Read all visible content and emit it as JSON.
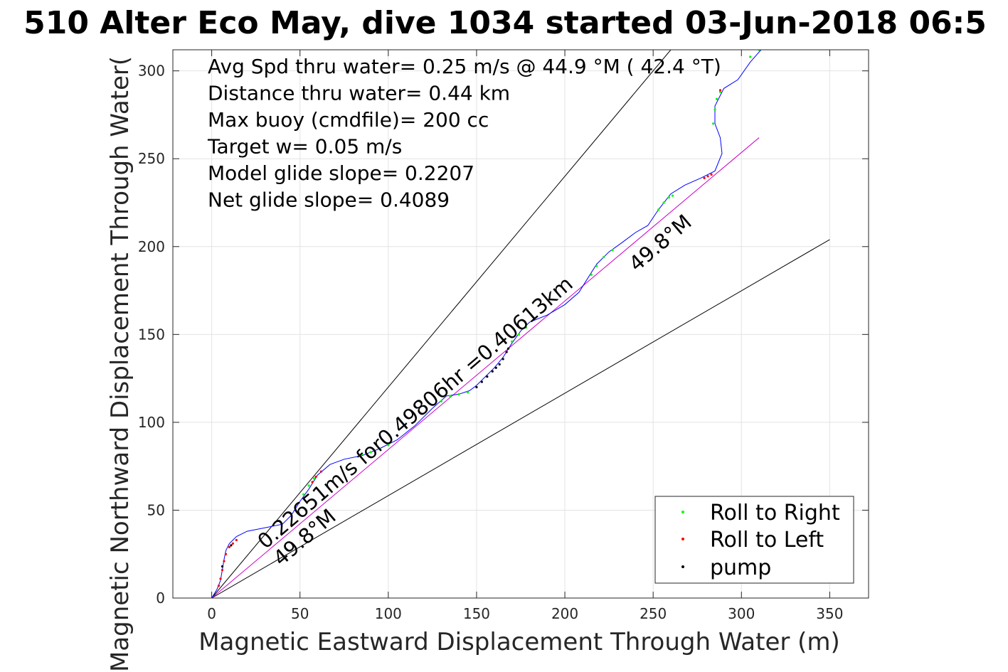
{
  "chart_data": {
    "type": "line",
    "title": "510 Alter Eco May, dive 1034 started 03-Jun-2018 06:5",
    "xlabel": "Magnetic Eastward Displacement Through Water (m)",
    "ylabel": "Magnetic Northward Displacement Through Water(",
    "xlim": [
      -22,
      372
    ],
    "ylim": [
      0,
      312
    ],
    "xticks": [
      0,
      50,
      100,
      150,
      200,
      250,
      300,
      350
    ],
    "yticks": [
      0,
      50,
      100,
      150,
      200,
      250,
      300
    ],
    "grid": true,
    "legend_position": "bottom-right",
    "info_lines": [
      "Avg Spd thru water=  0.25 m/s @  44.9 °M ( 42.4 °T)",
      "Distance thru water=  0.44 km",
      "Max buoy (cmdfile)= 200 cc",
      "Target w= 0.05 m/s",
      "Model glide slope= 0.2207",
      "Net glide slope= 0.4089"
    ],
    "annotations": {
      "path_label": "0.22651m/s for0.49806hr =0.40613km",
      "heading_upper": "49.8°M",
      "heading_lower": "49.8°M"
    },
    "colors": {
      "track": "#0000ff",
      "net_line": "#cc00cc",
      "roll_right": "#00ff00",
      "roll_left": "#ff0000",
      "pump": "#000000",
      "bounds": "#000000"
    },
    "reference_lines": [
      {
        "role": "upper-bound",
        "points": [
          [
            0,
            0
          ],
          [
            260,
            312
          ]
        ]
      },
      {
        "role": "lower-bound",
        "points": [
          [
            0,
            0
          ],
          [
            350,
            204
          ]
        ]
      },
      {
        "role": "net-course",
        "points": [
          [
            0,
            0
          ],
          [
            310,
            262
          ]
        ]
      }
    ],
    "series": [
      {
        "name": "track",
        "points": [
          [
            0,
            0
          ],
          [
            3,
            5
          ],
          [
            5,
            10
          ],
          [
            6,
            16
          ],
          [
            7,
            22
          ],
          [
            8,
            27
          ],
          [
            10,
            31
          ],
          [
            14,
            35
          ],
          [
            20,
            38
          ],
          [
            30,
            40
          ],
          [
            40,
            42
          ],
          [
            45,
            47
          ],
          [
            50,
            55
          ],
          [
            55,
            62
          ],
          [
            60,
            70
          ],
          [
            67,
            76
          ],
          [
            75,
            79
          ],
          [
            85,
            81
          ],
          [
            95,
            85
          ],
          [
            105,
            90
          ],
          [
            115,
            98
          ],
          [
            125,
            108
          ],
          [
            133,
            115
          ],
          [
            140,
            116
          ],
          [
            146,
            118
          ],
          [
            150,
            121
          ],
          [
            155,
            126
          ],
          [
            160,
            131
          ],
          [
            165,
            137
          ],
          [
            170,
            145
          ],
          [
            175,
            152
          ],
          [
            180,
            157
          ],
          [
            190,
            161
          ],
          [
            200,
            167
          ],
          [
            208,
            174
          ],
          [
            213,
            182
          ],
          [
            218,
            190
          ],
          [
            225,
            197
          ],
          [
            232,
            202
          ],
          [
            240,
            208
          ],
          [
            247,
            212
          ],
          [
            253,
            221
          ],
          [
            260,
            230
          ],
          [
            268,
            235
          ],
          [
            277,
            239
          ],
          [
            285,
            243
          ],
          [
            289,
            253
          ],
          [
            288,
            262
          ],
          [
            285,
            270
          ],
          [
            285,
            280
          ],
          [
            290,
            290
          ],
          [
            298,
            295
          ],
          [
            305,
            305
          ],
          [
            312,
            313
          ]
        ]
      },
      {
        "name": "Roll to Right",
        "points": [
          [
            52,
            59
          ],
          [
            55,
            64
          ],
          [
            58,
            68
          ],
          [
            85,
            82
          ],
          [
            90,
            83
          ],
          [
            95,
            85
          ],
          [
            100,
            87
          ],
          [
            130,
            112
          ],
          [
            135,
            115
          ],
          [
            140,
            116
          ],
          [
            145,
            117
          ],
          [
            170,
            146
          ],
          [
            174,
            150
          ],
          [
            178,
            154
          ],
          [
            215,
            184
          ],
          [
            218,
            189
          ],
          [
            222,
            194
          ],
          [
            253,
            221
          ],
          [
            256,
            225
          ],
          [
            259,
            228
          ],
          [
            284,
            270
          ],
          [
            285,
            278
          ],
          [
            286,
            284
          ],
          [
            288,
            288
          ],
          [
            305,
            308
          ],
          [
            310,
            312
          ],
          [
            261,
            229
          ],
          [
            227,
            198
          ]
        ]
      },
      {
        "name": "Roll to Left",
        "points": [
          [
            4,
            7
          ],
          [
            5,
            11
          ],
          [
            6,
            16
          ],
          [
            7,
            21
          ],
          [
            8,
            25
          ],
          [
            10,
            29
          ],
          [
            12,
            31
          ],
          [
            14,
            33
          ],
          [
            57,
            66
          ],
          [
            59,
            69
          ],
          [
            62,
            72
          ],
          [
            279,
            239
          ],
          [
            281,
            240
          ],
          [
            283,
            241
          ],
          [
            288,
            289
          ]
        ]
      },
      {
        "name": "pump",
        "points": [
          [
            150,
            120
          ],
          [
            153,
            123
          ],
          [
            156,
            126
          ],
          [
            159,
            129
          ],
          [
            161,
            131
          ],
          [
            163,
            133
          ],
          [
            165,
            136
          ],
          [
            167,
            140
          ],
          [
            168,
            142
          ],
          [
            11,
            30
          ],
          [
            6,
            18
          ]
        ]
      }
    ]
  }
}
